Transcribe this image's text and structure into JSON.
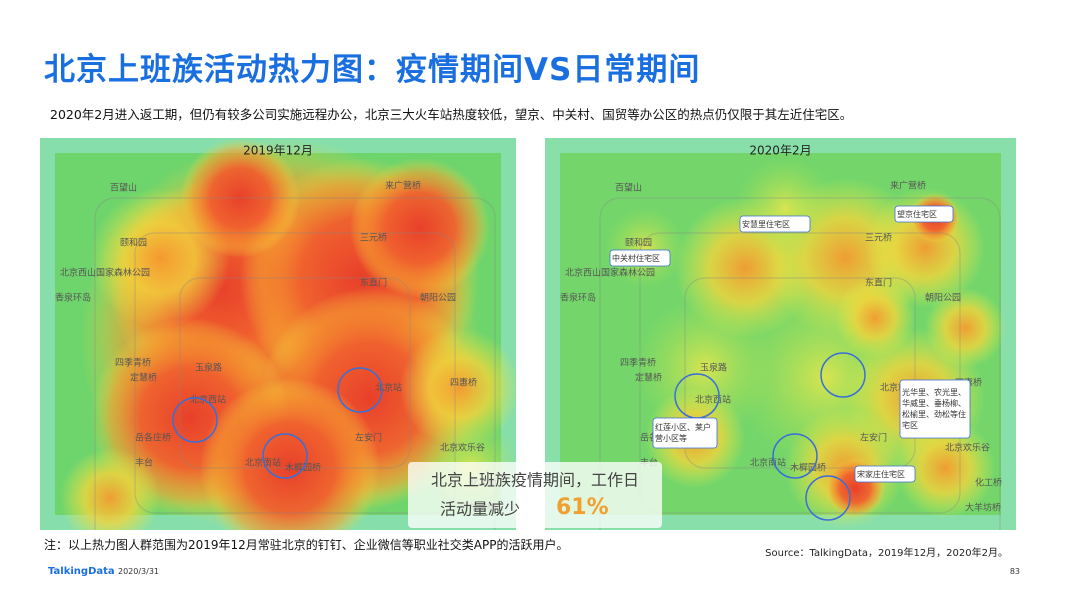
{
  "header": {
    "title": "北京上班族活动热力图：疫情期间VS日常期间",
    "subtitle": "2020年2月进入返工期，但仍有较多公司实施远程办公，北京三大火车站热度较低，望京、中关村、国贸等办公区的热点仍仅限于其左近住宅区。"
  },
  "maps": [
    {
      "period": "2019年12月"
    },
    {
      "period": "2020年2月",
      "callouts": [
        "安慧里住宅区",
        "望京住宅区",
        "中关村住宅区",
        "红莲小区、莱户营小区等",
        "光华里、农光里、华威里、垂杨柳、松榆里、劲松等住宅区",
        "宋家庄住宅区"
      ]
    }
  ],
  "map_labels": [
    "百望山",
    "颐和园",
    "北京西山国家森林公园",
    "香泉环岛",
    "四季青桥",
    "定慧桥",
    "玉泉路",
    "北京西站",
    "岳各庄桥",
    "丰台",
    "北京南站",
    "木樨园桥",
    "左安门",
    "北京站",
    "东直门",
    "朝阳公园",
    "四惠桥",
    "来广营桥",
    "三元桥",
    "北京欢乐谷",
    "化工桥",
    "大羊坊桥"
  ],
  "highlight": {
    "line1": "北京上班族疫情期间，工作日",
    "line2": "活动量减少",
    "figure": "61%"
  },
  "footer": {
    "note": "注：以上热力图人群范围为2019年12月常驻北京的钉钉、企业微信等职业社交类APP的活跃用户。",
    "source": "Source：TalkingData，2019年12月，2020年2月。",
    "logo": "TalkingData",
    "date": "2020/3/31",
    "page": "83"
  }
}
